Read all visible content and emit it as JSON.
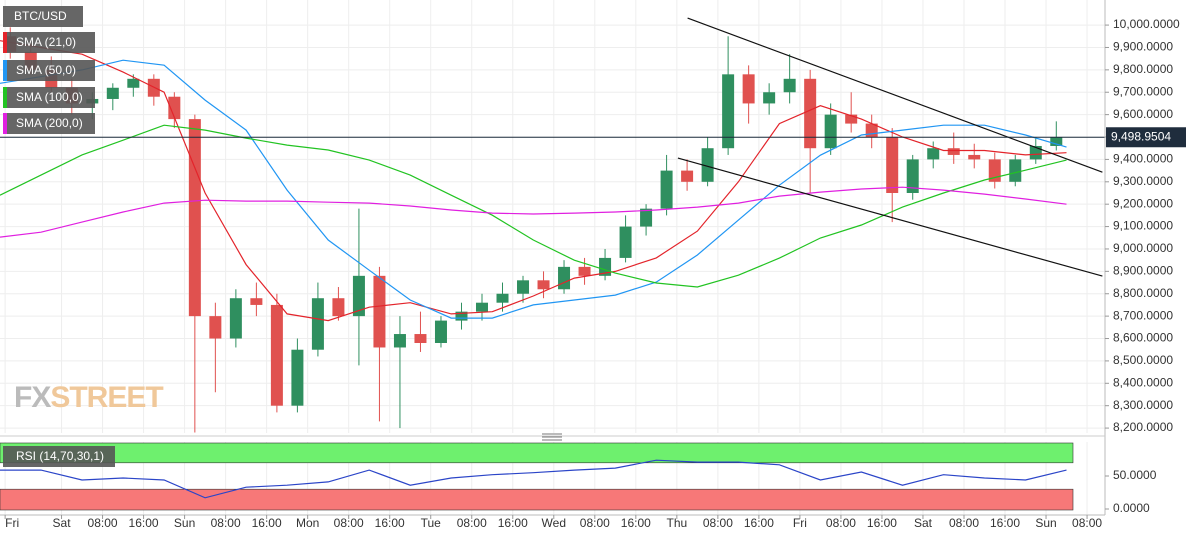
{
  "chart_data": [
    {
      "type": "candlestick",
      "title": "BTC/USD",
      "xlim": [
        -12,
        203.5
      ],
      "ylim": [
        8178,
        10112
      ],
      "xticks": [
        {
          "value": -11,
          "label": "Fri"
        },
        {
          "value": 0,
          "label": "Sat"
        },
        {
          "value": 8,
          "label": "08:00"
        },
        {
          "value": 16,
          "label": "16:00"
        },
        {
          "value": 24,
          "label": "Sun"
        },
        {
          "value": 32,
          "label": "08:00"
        },
        {
          "value": 40,
          "label": "16:00"
        },
        {
          "value": 48,
          "label": "Mon"
        },
        {
          "value": 56,
          "label": "08:00"
        },
        {
          "value": 64,
          "label": "16:00"
        },
        {
          "value": 72,
          "label": "Tue"
        },
        {
          "value": 80,
          "label": "08:00"
        },
        {
          "value": 88,
          "label": "16:00"
        },
        {
          "value": 96,
          "label": "Wed"
        },
        {
          "value": 104,
          "label": "08:00"
        },
        {
          "value": 112,
          "label": "16:00"
        },
        {
          "value": 120,
          "label": "Thu"
        },
        {
          "value": 128,
          "label": "08:00"
        },
        {
          "value": 136,
          "label": "16:00"
        },
        {
          "value": 144,
          "label": "Fri"
        },
        {
          "value": 152,
          "label": "08:00"
        },
        {
          "value": 160,
          "label": "16:00"
        },
        {
          "value": 168,
          "label": "Sat"
        },
        {
          "value": 176,
          "label": "08:00"
        },
        {
          "value": 184,
          "label": "16:00"
        },
        {
          "value": 192,
          "label": "Sun"
        },
        {
          "value": 200,
          "label": "08:00"
        }
      ],
      "yticks": [
        {
          "value": 8200,
          "label": "8,200.0000"
        },
        {
          "value": 8300,
          "label": "8,300.0000"
        },
        {
          "value": 8400,
          "label": "8,400.0000"
        },
        {
          "value": 8500,
          "label": "8,500.0000"
        },
        {
          "value": 8600,
          "label": "8,600.0000"
        },
        {
          "value": 8700,
          "label": "8,700.0000"
        },
        {
          "value": 8800,
          "label": "8,800.0000"
        },
        {
          "value": 8900,
          "label": "8,900.0000"
        },
        {
          "value": 9000,
          "label": "9,000.0000"
        },
        {
          "value": 9100,
          "label": "9,100.0000"
        },
        {
          "value": 9200,
          "label": "9,200.0000"
        },
        {
          "value": 9300,
          "label": "9,300.0000"
        },
        {
          "value": 9400,
          "label": "9,400.0000"
        },
        {
          "value": 9500,
          "label": "9,500.0000"
        },
        {
          "value": 9600,
          "label": "9,600.0000"
        },
        {
          "value": 9700,
          "label": "9,700.0000"
        },
        {
          "value": 9800,
          "label": "9,800.0000"
        },
        {
          "value": 9900,
          "label": "9,900.0000"
        },
        {
          "value": 10000,
          "label": "10,000.0000"
        }
      ],
      "grid": true,
      "up_color": "#2f8f5f",
      "down_color": "#e0514f",
      "x": [
        -10,
        -6,
        -2,
        2,
        6,
        10,
        14,
        18,
        22,
        26,
        30,
        34,
        38,
        42,
        46,
        50,
        54,
        58,
        62,
        66,
        70,
        74,
        78,
        82,
        86,
        90,
        94,
        98,
        102,
        106,
        110,
        114,
        118,
        122,
        126,
        130,
        134,
        138,
        142,
        146,
        150,
        154,
        158,
        162,
        166,
        170,
        174,
        178,
        182,
        186,
        190,
        194
      ],
      "open": [
        9950,
        9880,
        9800,
        9720,
        9650,
        9670,
        9720,
        9760,
        9680,
        9580,
        8700,
        8600,
        8780,
        8750,
        8300,
        8550,
        8780,
        8700,
        8880,
        8560,
        8620,
        8580,
        8680,
        8720,
        8760,
        8800,
        8860,
        8820,
        8920,
        8880,
        8960,
        9100,
        9180,
        9350,
        9300,
        9450,
        9780,
        9650,
        9700,
        9760,
        9450,
        9600,
        9560,
        9500,
        9250,
        9400,
        9450,
        9420,
        9400,
        9300,
        9400,
        9460
      ],
      "high": [
        9990,
        9920,
        9860,
        9760,
        9700,
        9740,
        9780,
        9780,
        9700,
        9600,
        8760,
        8820,
        8850,
        8800,
        8600,
        8850,
        8830,
        9180,
        8920,
        8700,
        8720,
        8700,
        8760,
        8800,
        8850,
        8880,
        8900,
        8950,
        8960,
        9000,
        9150,
        9200,
        9420,
        9400,
        9500,
        9950,
        9820,
        9740,
        9870,
        9800,
        9650,
        9700,
        9600,
        9540,
        9420,
        9480,
        9520,
        9470,
        9430,
        9420,
        9500,
        9570
      ],
      "low": [
        9850,
        9780,
        9700,
        9600,
        9580,
        9620,
        9680,
        9640,
        9540,
        8180,
        8360,
        8560,
        8700,
        8270,
        8270,
        8520,
        8680,
        8480,
        8230,
        8200,
        8540,
        8560,
        8640,
        8680,
        8720,
        8760,
        8780,
        8800,
        8840,
        8860,
        8940,
        9060,
        9150,
        9260,
        9280,
        9420,
        9560,
        9600,
        9650,
        9250,
        9420,
        9520,
        9450,
        9120,
        9220,
        9360,
        9380,
        9360,
        9270,
        9280,
        9380,
        9440
      ],
      "close": [
        9880,
        9800,
        9720,
        9650,
        9670,
        9720,
        9760,
        9680,
        9580,
        8700,
        8600,
        8780,
        8750,
        8300,
        8550,
        8780,
        8700,
        8880,
        8560,
        8620,
        8580,
        8680,
        8720,
        8760,
        8800,
        8860,
        8820,
        8920,
        8880,
        8960,
        9100,
        9180,
        9350,
        9300,
        9450,
        9780,
        9650,
        9700,
        9760,
        9450,
        9600,
        9560,
        9500,
        9250,
        9400,
        9450,
        9420,
        9400,
        9300,
        9400,
        9460,
        9500
      ],
      "series": [
        {
          "name": "SMA (21,0)",
          "color": "#e3242b",
          "x": [
            -12,
            -4,
            4,
            12,
            20,
            28,
            36,
            44,
            52,
            60,
            68,
            76,
            84,
            92,
            100,
            108,
            116,
            124,
            132,
            140,
            148,
            156,
            164,
            172,
            180,
            188,
            196
          ],
          "values": [
            9930,
            9900,
            9870,
            9790,
            9700,
            9250,
            8930,
            8710,
            8680,
            8740,
            8760,
            8710,
            8720,
            8790,
            8870,
            8900,
            8960,
            9080,
            9300,
            9560,
            9640,
            9580,
            9500,
            9440,
            9440,
            9420,
            9430
          ]
        },
        {
          "name": "SMA (50,0)",
          "color": "#2196f3",
          "x": [
            -12,
            -4,
            4,
            12,
            20,
            28,
            36,
            44,
            52,
            60,
            68,
            76,
            84,
            92,
            100,
            108,
            116,
            124,
            132,
            140,
            148,
            156,
            164,
            172,
            180,
            188,
            196
          ],
          "values": [
            9740,
            9770,
            9800,
            9843,
            9821,
            9665,
            9531,
            9263,
            9040,
            8905,
            8772,
            8691,
            8691,
            8750,
            8772,
            8794,
            8852,
            8973,
            9129,
            9285,
            9419,
            9509,
            9531,
            9553,
            9553,
            9509,
            9455
          ]
        },
        {
          "name": "SMA (100,0)",
          "color": "#22c322",
          "x": [
            -12,
            -4,
            4,
            12,
            20,
            28,
            36,
            44,
            52,
            60,
            68,
            76,
            84,
            92,
            100,
            108,
            116,
            124,
            132,
            140,
            148,
            156,
            164,
            172,
            180,
            188,
            196
          ],
          "values": [
            9240,
            9330,
            9420,
            9486,
            9553,
            9531,
            9495,
            9464,
            9442,
            9397,
            9330,
            9240,
            9151,
            9040,
            8950,
            8892,
            8848,
            8830,
            8883,
            8959,
            9049,
            9107,
            9187,
            9250,
            9308,
            9352,
            9397
          ]
        },
        {
          "name": "SMA (200,0)",
          "color": "#e020e0",
          "x": [
            -12,
            -4,
            4,
            12,
            20,
            28,
            36,
            44,
            52,
            60,
            68,
            76,
            84,
            92,
            100,
            108,
            116,
            124,
            132,
            140,
            148,
            156,
            164,
            172,
            180,
            188,
            196
          ],
          "values": [
            9053,
            9075,
            9120,
            9165,
            9205,
            9218,
            9214,
            9214,
            9209,
            9205,
            9192,
            9174,
            9160,
            9156,
            9160,
            9165,
            9174,
            9187,
            9205,
            9236,
            9254,
            9268,
            9276,
            9263,
            9245,
            9223,
            9200
          ]
        }
      ],
      "trendlines": [
        {
          "x": [
            122.1,
            203
          ],
          "values": [
            10031,
            9343
          ]
        },
        {
          "x": [
            120.2,
            203
          ],
          "values": [
            9406,
            8879
          ]
        }
      ],
      "last_price": 9498.9504,
      "last_price_label": "9,498.9504",
      "watermark": {
        "prefix": "FX",
        "suffix": "STREET"
      }
    },
    {
      "type": "line",
      "title": "RSI (14,70,30,1)",
      "ylim": [
        0,
        100
      ],
      "yticks": [
        {
          "value": 50,
          "label": "50.0000"
        },
        {
          "value": 0,
          "label": "0.0000"
        }
      ],
      "overbought": 70,
      "oversold": 30,
      "series": [
        {
          "color": "#2b45c8",
          "x": [
            -12,
            -4,
            4,
            12,
            20,
            28,
            36,
            44,
            52,
            60,
            68,
            76,
            84,
            92,
            100,
            108,
            116,
            124,
            132,
            140,
            148,
            156,
            164,
            172,
            180,
            188,
            196
          ],
          "values": [
            59,
            59,
            44,
            47,
            44,
            17,
            33,
            36,
            41,
            59,
            36,
            47,
            52,
            55,
            59,
            62,
            74,
            71,
            71,
            67,
            44,
            56,
            36,
            52,
            47,
            44,
            59
          ]
        }
      ]
    }
  ]
}
